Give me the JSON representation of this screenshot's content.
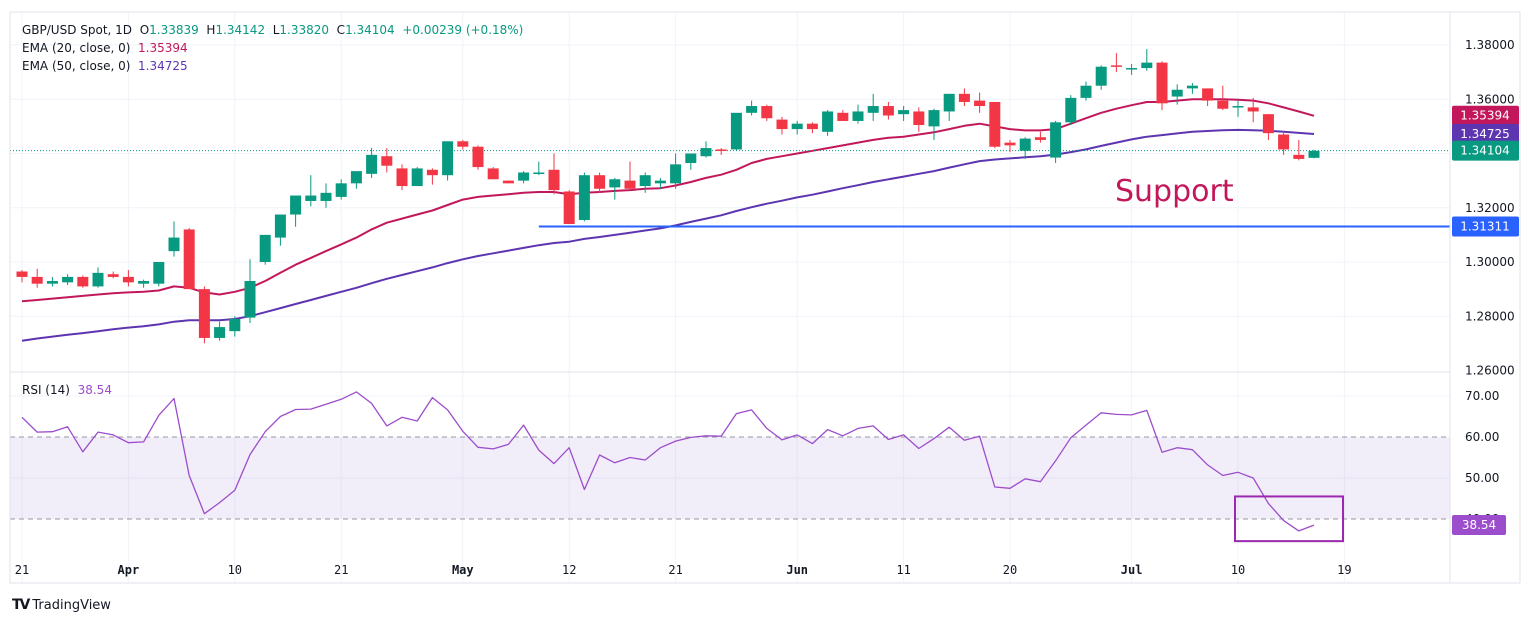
{
  "header": {
    "symbol": "GBP/USD Spot, 1D",
    "open_label": "O",
    "open": "1.33839",
    "high_label": "H",
    "high": "1.34142",
    "low_label": "L",
    "low": "1.33820",
    "close_label": "C",
    "close": "1.34104",
    "change": "+0.00239 (+0.18%)"
  },
  "ema20": {
    "label": "EMA (20, close, 0)",
    "value": "1.35394",
    "color": "#c2185b"
  },
  "ema50": {
    "label": "EMA (50, close, 0)",
    "value": "1.34725",
    "color": "#5e35b1"
  },
  "rsi": {
    "label": "RSI (14)",
    "value": "38.54",
    "color": "#9c4dcc"
  },
  "footer": {
    "logo": "TV",
    "brand": "TradingView"
  },
  "colors": {
    "up": "#089981",
    "down": "#f23645",
    "support": "#2962ff",
    "annotation": "#c2185b",
    "rsi_box": "#9c27b0"
  },
  "chart_data": [
    {
      "type": "candlestick",
      "title": "GBP/USD Spot, 1D",
      "ylim": [
        1.26,
        1.386
      ],
      "yticks": [
        "1.38000",
        "1.36000",
        "1.34000",
        "1.32000",
        "1.30000",
        "1.28000",
        "1.26000"
      ],
      "yticks_shown": [
        "1.38000",
        "1.36000",
        "1.32000",
        "1.30000",
        "1.28000",
        "1.26000"
      ],
      "xticks": [
        {
          "label": "21",
          "index": 0,
          "bold": false
        },
        {
          "label": "Apr",
          "index": 7,
          "bold": true
        },
        {
          "label": "10",
          "index": 14,
          "bold": false
        },
        {
          "label": "21",
          "index": 21,
          "bold": false
        },
        {
          "label": "May",
          "index": 29,
          "bold": true
        },
        {
          "label": "12",
          "index": 36,
          "bold": false
        },
        {
          "label": "21",
          "index": 43,
          "bold": false
        },
        {
          "label": "Jun",
          "index": 51,
          "bold": true
        },
        {
          "label": "11",
          "index": 58,
          "bold": false
        },
        {
          "label": "20",
          "index": 65,
          "bold": false
        },
        {
          "label": "Jul",
          "index": 73,
          "bold": true
        },
        {
          "label": "10",
          "index": 80,
          "bold": false
        },
        {
          "label": "19",
          "index": 87,
          "bold": false
        }
      ],
      "candles": [
        [
          1.2965,
          1.297,
          1.2925,
          1.2945
        ],
        [
          1.2945,
          1.2975,
          1.2905,
          1.292
        ],
        [
          1.292,
          1.2945,
          1.291,
          1.293
        ],
        [
          1.2925,
          1.2955,
          1.2915,
          1.2945
        ],
        [
          1.2945,
          1.295,
          1.2905,
          1.291
        ],
        [
          1.291,
          1.298,
          1.2905,
          1.296
        ],
        [
          1.2955,
          1.2965,
          1.294,
          1.2945
        ],
        [
          1.2945,
          1.297,
          1.291,
          1.2925
        ],
        [
          1.292,
          1.2935,
          1.2905,
          1.293
        ],
        [
          1.292,
          1.299,
          1.291,
          1.3
        ],
        [
          1.304,
          1.315,
          1.302,
          1.309
        ],
        [
          1.312,
          1.3125,
          1.291,
          1.29
        ],
        [
          1.29,
          1.291,
          1.27,
          1.272
        ],
        [
          1.272,
          1.278,
          1.271,
          1.276
        ],
        [
          1.2745,
          1.28,
          1.2725,
          1.279
        ],
        [
          1.2795,
          1.301,
          1.2775,
          1.293
        ],
        [
          1.3,
          1.306,
          1.299,
          1.31
        ],
        [
          1.309,
          1.316,
          1.306,
          1.3175
        ],
        [
          1.3175,
          1.319,
          1.313,
          1.3245
        ],
        [
          1.3225,
          1.332,
          1.3205,
          1.3245
        ],
        [
          1.3225,
          1.329,
          1.32,
          1.3255
        ],
        [
          1.324,
          1.3305,
          1.323,
          1.329
        ],
        [
          1.329,
          1.33,
          1.327,
          1.3335
        ],
        [
          1.3325,
          1.342,
          1.331,
          1.3395
        ],
        [
          1.339,
          1.342,
          1.333,
          1.3355
        ],
        [
          1.3345,
          1.336,
          1.3265,
          1.328
        ],
        [
          1.328,
          1.335,
          1.328,
          1.3345
        ],
        [
          1.334,
          1.3345,
          1.3285,
          1.332
        ],
        [
          1.332,
          1.3445,
          1.33,
          1.3445
        ],
        [
          1.3445,
          1.345,
          1.3415,
          1.3425
        ],
        [
          1.3425,
          1.343,
          1.334,
          1.335
        ],
        [
          1.3345,
          1.335,
          1.3305,
          1.3305
        ],
        [
          1.33,
          1.33,
          1.329,
          1.329
        ],
        [
          1.33,
          1.3335,
          1.329,
          1.333
        ],
        [
          1.3325,
          1.337,
          1.332,
          1.333
        ],
        [
          1.334,
          1.34,
          1.325,
          1.3265
        ],
        [
          1.326,
          1.3265,
          1.314,
          1.314
        ],
        [
          1.3155,
          1.333,
          1.315,
          1.332
        ],
        [
          1.332,
          1.333,
          1.3255,
          1.327
        ],
        [
          1.3275,
          1.331,
          1.323,
          1.3305
        ],
        [
          1.33,
          1.337,
          1.3265,
          1.327
        ],
        [
          1.328,
          1.333,
          1.3255,
          1.332
        ],
        [
          1.329,
          1.331,
          1.327,
          1.33
        ],
        [
          1.329,
          1.34,
          1.327,
          1.336
        ],
        [
          1.3365,
          1.34,
          1.334,
          1.34
        ],
        [
          1.339,
          1.3445,
          1.3385,
          1.342
        ],
        [
          1.3415,
          1.342,
          1.3395,
          1.341
        ],
        [
          1.3415,
          1.353,
          1.341,
          1.355
        ],
        [
          1.355,
          1.3595,
          1.354,
          1.3575
        ],
        [
          1.3575,
          1.358,
          1.352,
          1.353
        ],
        [
          1.3525,
          1.3535,
          1.347,
          1.349
        ],
        [
          1.349,
          1.352,
          1.347,
          1.351
        ],
        [
          1.351,
          1.3515,
          1.3475,
          1.349
        ],
        [
          1.348,
          1.356,
          1.3465,
          1.3555
        ],
        [
          1.355,
          1.356,
          1.352,
          1.352
        ],
        [
          1.352,
          1.358,
          1.351,
          1.3555
        ],
        [
          1.355,
          1.362,
          1.352,
          1.3575
        ],
        [
          1.3575,
          1.359,
          1.3525,
          1.354
        ],
        [
          1.3545,
          1.3575,
          1.352,
          1.356
        ],
        [
          1.3555,
          1.357,
          1.348,
          1.3505
        ],
        [
          1.35,
          1.3565,
          1.345,
          1.356
        ],
        [
          1.3555,
          1.3605,
          1.352,
          1.362
        ],
        [
          1.362,
          1.364,
          1.3575,
          1.359
        ],
        [
          1.3595,
          1.3625,
          1.355,
          1.3575
        ],
        [
          1.359,
          1.359,
          1.342,
          1.3425
        ],
        [
          1.344,
          1.345,
          1.3405,
          1.343
        ],
        [
          1.341,
          1.346,
          1.338,
          1.3455
        ],
        [
          1.346,
          1.348,
          1.344,
          1.345
        ],
        [
          1.3385,
          1.352,
          1.3365,
          1.3515
        ],
        [
          1.3515,
          1.3615,
          1.3505,
          1.3605
        ],
        [
          1.3605,
          1.3665,
          1.3595,
          1.365
        ],
        [
          1.365,
          1.3725,
          1.3635,
          1.372
        ],
        [
          1.3725,
          1.377,
          1.37,
          1.372
        ],
        [
          1.371,
          1.373,
          1.369,
          1.3715
        ],
        [
          1.3715,
          1.3785,
          1.3705,
          1.3735
        ],
        [
          1.3735,
          1.374,
          1.356,
          1.3585
        ],
        [
          1.361,
          1.3655,
          1.358,
          1.3635
        ],
        [
          1.364,
          1.366,
          1.362,
          1.365
        ],
        [
          1.364,
          1.364,
          1.3575,
          1.3595
        ],
        [
          1.3595,
          1.365,
          1.356,
          1.3565
        ],
        [
          1.3575,
          1.3595,
          1.3535,
          1.3575
        ],
        [
          1.357,
          1.3605,
          1.3515,
          1.3555
        ],
        [
          1.3545,
          1.3545,
          1.345,
          1.3475
        ],
        [
          1.347,
          1.348,
          1.3395,
          1.3415
        ],
        [
          1.3395,
          1.345,
          1.3375,
          1.338
        ],
        [
          1.3384,
          1.3414,
          1.3382,
          1.341
        ]
      ],
      "series": [
        {
          "name": "EMA (20, close, 0)",
          "last": 1.35394,
          "values": [
            1.2855,
            1.286,
            1.2865,
            1.287,
            1.2875,
            1.288,
            1.2885,
            1.2888,
            1.289,
            1.2895,
            1.291,
            1.2905,
            1.2888,
            1.288,
            1.289,
            1.2905,
            1.293,
            1.296,
            1.299,
            1.3015,
            1.304,
            1.3065,
            1.309,
            1.312,
            1.3145,
            1.316,
            1.3175,
            1.319,
            1.321,
            1.323,
            1.324,
            1.3245,
            1.325,
            1.3255,
            1.3258,
            1.3258,
            1.325,
            1.3255,
            1.3258,
            1.3262,
            1.3265,
            1.327,
            1.3272,
            1.3282,
            1.3295,
            1.331,
            1.3322,
            1.334,
            1.3365,
            1.338,
            1.339,
            1.34,
            1.341,
            1.342,
            1.343,
            1.344,
            1.345,
            1.3458,
            1.3462,
            1.347,
            1.3478,
            1.349,
            1.3502,
            1.351,
            1.35,
            1.349,
            1.3485,
            1.3485,
            1.349,
            1.351,
            1.353,
            1.355,
            1.3565,
            1.3578,
            1.359,
            1.359,
            1.3595,
            1.36,
            1.36,
            1.36,
            1.3598,
            1.3595,
            1.3585,
            1.357,
            1.3555,
            1.3539
          ]
        },
        {
          "name": "EMA (50, close, 0)",
          "last": 1.34725,
          "values": [
            1.271,
            1.2718,
            1.2725,
            1.2732,
            1.2738,
            1.2745,
            1.2752,
            1.2758,
            1.2763,
            1.277,
            1.278,
            1.2785,
            1.2785,
            1.2785,
            1.279,
            1.28,
            1.2815,
            1.283,
            1.2845,
            1.286,
            1.2875,
            1.289,
            1.2905,
            1.2922,
            1.2938,
            1.2952,
            1.2966,
            1.298,
            1.2996,
            1.301,
            1.3022,
            1.3032,
            1.3042,
            1.3052,
            1.3062,
            1.307,
            1.3075,
            1.3085,
            1.3092,
            1.31,
            1.3108,
            1.3116,
            1.3124,
            1.3135,
            1.3148,
            1.316,
            1.3172,
            1.3188,
            1.3202,
            1.3215,
            1.3226,
            1.3238,
            1.3248,
            1.326,
            1.3272,
            1.3283,
            1.3295,
            1.3305,
            1.3315,
            1.3325,
            1.3335,
            1.3348,
            1.336,
            1.3372,
            1.3378,
            1.3382,
            1.3386,
            1.339,
            1.3396,
            1.3405,
            1.3415,
            1.3428,
            1.344,
            1.3452,
            1.3462,
            1.3468,
            1.3474,
            1.348,
            1.3483,
            1.3486,
            1.3487,
            1.3486,
            1.3484,
            1.348,
            1.3476,
            1.3472
          ]
        }
      ],
      "horizontal_lines": [
        {
          "name": "support",
          "value": 1.31311,
          "label": "1.31311",
          "start_index": 34
        },
        {
          "name": "last-price",
          "value": 1.34104,
          "label": "1.34104",
          "style": "dotted"
        }
      ],
      "annotations": [
        {
          "text": "Support",
          "index": 72,
          "value": 1.3225
        }
      ],
      "price_tags": [
        {
          "label": "1.35394",
          "value": 1.35394,
          "color": "#c2185b"
        },
        {
          "label": "1.34725",
          "value": 1.34725,
          "color": "#5e35b1"
        },
        {
          "label": "1.34104",
          "value": 1.34104,
          "color": "#089981"
        },
        {
          "label": "1.31311",
          "value": 1.31311,
          "color": "#2962ff"
        }
      ]
    },
    {
      "type": "line",
      "title": "RSI (14)",
      "ylim": [
        30.6,
        73.5
      ],
      "yticks": [
        "70.00",
        "60.00",
        "50.00",
        "40.00"
      ],
      "bands": {
        "upper": 60,
        "lower": 40
      },
      "last": 38.54,
      "values": [
        64.8,
        61.2,
        61.3,
        62.5,
        56.4,
        61.2,
        60.5,
        58.6,
        58.8,
        65.3,
        69.4,
        50.6,
        41.3,
        44.0,
        47.0,
        55.7,
        61.3,
        65.0,
        66.7,
        66.8,
        68.0,
        69.2,
        71.0,
        68.2,
        62.7,
        64.8,
        63.9,
        69.6,
        66.6,
        61.4,
        57.5,
        57.1,
        58.2,
        62.9,
        56.8,
        53.5,
        57.4,
        47.2,
        55.6,
        53.7,
        55.0,
        54.4,
        57.4,
        59.0,
        59.9,
        60.3,
        60.2,
        65.7,
        66.6,
        62.1,
        59.3,
        60.5,
        58.4,
        61.8,
        60.3,
        62.1,
        62.7,
        59.4,
        60.5,
        57.2,
        59.6,
        62.4,
        59.2,
        60.2,
        47.8,
        47.5,
        49.8,
        49.1,
        54.2,
        59.8,
        62.9,
        65.9,
        65.5,
        65.4,
        66.5,
        56.3,
        57.4,
        56.9,
        53.2,
        50.6,
        51.4,
        50.0,
        43.8,
        39.6,
        37.1,
        38.5
      ]
    }
  ]
}
